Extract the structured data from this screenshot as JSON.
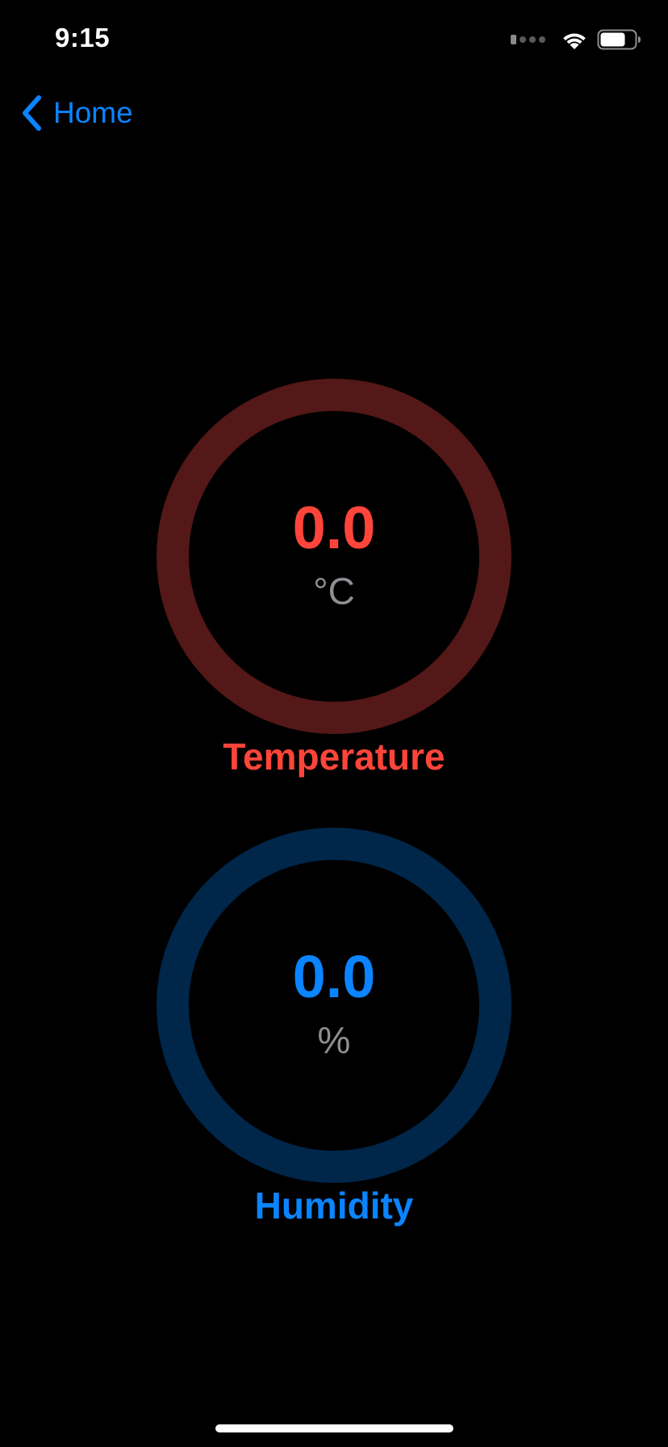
{
  "status_bar": {
    "time": "9:15",
    "icons": [
      "cellular-signal-icon",
      "wifi-icon",
      "battery-icon"
    ],
    "battery_level": 0.75
  },
  "nav": {
    "back_label": "Home",
    "back_icon": "chevron-left-icon"
  },
  "gauges": {
    "temperature": {
      "value": "0.0",
      "unit": "°C",
      "label": "Temperature",
      "color": "#ff453a",
      "track_color": "#531817"
    },
    "humidity": {
      "value": "0.0",
      "unit": "%",
      "label": "Humidity",
      "color": "#0a84ff",
      "track_color": "#00264a"
    }
  },
  "colors": {
    "background": "#000000",
    "accent": "#0a84ff",
    "unit_text": "#8e8e93"
  }
}
